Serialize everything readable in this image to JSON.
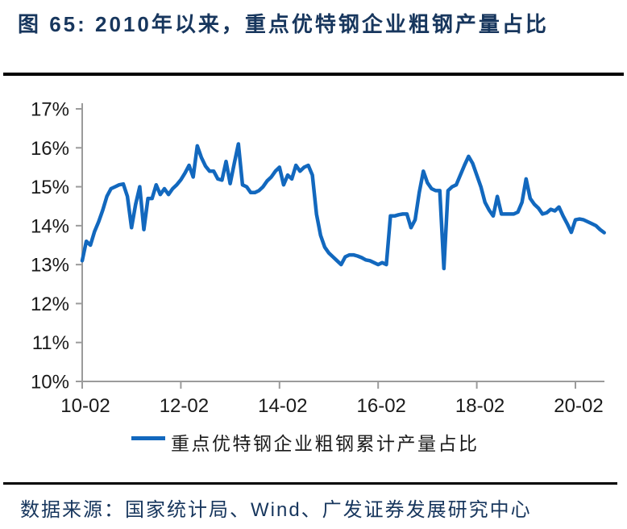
{
  "figure": {
    "title": "图 65: 2010年以来，重点优特钢企业粗钢产量占比",
    "source": "数据来源：国家统计局、Wind、广发证券发展研究中心"
  },
  "chart_data": {
    "type": "line",
    "title": "图 65: 2010年以来，重点优特钢企业粗钢产量占比",
    "xlabel": "",
    "ylabel": "",
    "ylim": [
      10,
      17
    ],
    "grid": false,
    "legend_position": "bottom",
    "line_color": "#1268BE",
    "axis_color": "#9b9b9b",
    "text_color": "#1a1a1a",
    "y_ticks": [
      "17%",
      "16%",
      "15%",
      "14%",
      "13%",
      "12%",
      "11%",
      "10%"
    ],
    "x_ticks": [
      "10-02",
      "12-02",
      "14-02",
      "16-02",
      "18-02",
      "20-02"
    ],
    "series": [
      {
        "name": "重点优特钢企业粗钢累计产量占比",
        "unit": "%",
        "points": [
          [
            "10-02",
            13.1
          ],
          [
            "10-03",
            13.6
          ],
          [
            "10-04",
            13.5
          ],
          [
            "10-05",
            13.85
          ],
          [
            "10-06",
            14.1
          ],
          [
            "10-07",
            14.4
          ],
          [
            "10-08",
            14.75
          ],
          [
            "10-09",
            14.95
          ],
          [
            "10-10",
            15.0
          ],
          [
            "10-11",
            15.05
          ],
          [
            "10-12",
            15.07
          ],
          [
            "11-01",
            14.75
          ],
          [
            "11-02",
            13.95
          ],
          [
            "11-03",
            14.55
          ],
          [
            "11-04",
            15.0
          ],
          [
            "11-05",
            13.9
          ],
          [
            "11-06",
            14.7
          ],
          [
            "11-07",
            14.7
          ],
          [
            "11-08",
            15.05
          ],
          [
            "11-09",
            14.8
          ],
          [
            "11-10",
            14.95
          ],
          [
            "11-11",
            14.8
          ],
          [
            "11-12",
            14.95
          ],
          [
            "12-01",
            15.05
          ],
          [
            "12-02",
            15.18
          ],
          [
            "12-03",
            15.35
          ],
          [
            "12-04",
            15.55
          ],
          [
            "12-05",
            15.25
          ],
          [
            "12-06",
            16.05
          ],
          [
            "12-07",
            15.75
          ],
          [
            "12-08",
            15.53
          ],
          [
            "12-09",
            15.4
          ],
          [
            "12-10",
            15.4
          ],
          [
            "12-11",
            15.2
          ],
          [
            "12-12",
            15.17
          ],
          [
            "13-01",
            15.65
          ],
          [
            "13-02",
            15.08
          ],
          [
            "13-03",
            15.6
          ],
          [
            "13-04",
            16.1
          ],
          [
            "13-05",
            15.05
          ],
          [
            "13-06",
            15.0
          ],
          [
            "13-07",
            14.85
          ],
          [
            "13-08",
            14.85
          ],
          [
            "13-09",
            14.9
          ],
          [
            "13-10",
            15.0
          ],
          [
            "13-11",
            15.15
          ],
          [
            "13-12",
            15.25
          ],
          [
            "14-01",
            15.4
          ],
          [
            "14-02",
            15.5
          ],
          [
            "14-03",
            15.05
          ],
          [
            "14-04",
            15.3
          ],
          [
            "14-05",
            15.2
          ],
          [
            "14-06",
            15.55
          ],
          [
            "14-07",
            15.4
          ],
          [
            "14-08",
            15.5
          ],
          [
            "14-09",
            15.55
          ],
          [
            "14-10",
            15.3
          ],
          [
            "14-11",
            14.3
          ],
          [
            "14-12",
            13.75
          ],
          [
            "15-01",
            13.45
          ],
          [
            "15-02",
            13.3
          ],
          [
            "15-03",
            13.2
          ],
          [
            "15-04",
            13.1
          ],
          [
            "15-05",
            13.0
          ],
          [
            "15-06",
            13.2
          ],
          [
            "15-07",
            13.25
          ],
          [
            "15-08",
            13.25
          ],
          [
            "15-09",
            13.22
          ],
          [
            "15-10",
            13.18
          ],
          [
            "15-11",
            13.12
          ],
          [
            "15-12",
            13.1
          ],
          [
            "16-01",
            13.05
          ],
          [
            "16-02",
            13.0
          ],
          [
            "16-03",
            13.05
          ],
          [
            "16-04",
            13.0
          ],
          [
            "16-05",
            14.25
          ],
          [
            "16-06",
            14.25
          ],
          [
            "16-07",
            14.28
          ],
          [
            "16-08",
            14.3
          ],
          [
            "16-09",
            14.3
          ],
          [
            "16-10",
            13.95
          ],
          [
            "16-11",
            14.15
          ],
          [
            "16-12",
            14.85
          ],
          [
            "17-01",
            15.4
          ],
          [
            "17-02",
            15.1
          ],
          [
            "17-03",
            14.95
          ],
          [
            "17-04",
            14.9
          ],
          [
            "17-05",
            14.9
          ],
          [
            "17-06",
            12.9
          ],
          [
            "17-07",
            14.9
          ],
          [
            "17-08",
            15.0
          ],
          [
            "17-09",
            15.05
          ],
          [
            "17-10",
            15.3
          ],
          [
            "17-11",
            15.55
          ],
          [
            "17-12",
            15.78
          ],
          [
            "18-01",
            15.6
          ],
          [
            "18-02",
            15.3
          ],
          [
            "18-03",
            15.0
          ],
          [
            "18-04",
            14.6
          ],
          [
            "18-05",
            14.4
          ],
          [
            "18-06",
            14.25
          ],
          [
            "18-07",
            14.75
          ],
          [
            "18-08",
            14.3
          ],
          [
            "18-09",
            14.3
          ],
          [
            "18-10",
            14.3
          ],
          [
            "18-11",
            14.3
          ],
          [
            "18-12",
            14.35
          ],
          [
            "19-01",
            14.6
          ],
          [
            "19-02",
            15.2
          ],
          [
            "19-03",
            14.7
          ],
          [
            "19-04",
            14.55
          ],
          [
            "19-05",
            14.45
          ],
          [
            "19-06",
            14.3
          ],
          [
            "19-07",
            14.33
          ],
          [
            "19-08",
            14.42
          ],
          [
            "19-09",
            14.38
          ],
          [
            "19-10",
            14.48
          ],
          [
            "19-11",
            14.25
          ],
          [
            "19-12",
            14.05
          ],
          [
            "20-01",
            13.83
          ],
          [
            "20-02",
            14.15
          ],
          [
            "20-03",
            14.17
          ],
          [
            "20-04",
            14.15
          ],
          [
            "20-05",
            14.1
          ],
          [
            "20-06",
            14.05
          ],
          [
            "20-07",
            14.0
          ],
          [
            "20-08",
            13.9
          ],
          [
            "20-09",
            13.82
          ]
        ]
      }
    ]
  }
}
